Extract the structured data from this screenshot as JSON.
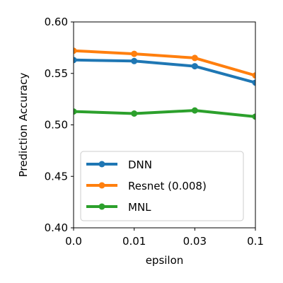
{
  "chart_data": {
    "type": "line",
    "title": "",
    "xlabel": "epsilon",
    "ylabel": "Prediction Accuracy",
    "categories": [
      "0.0",
      "0.01",
      "0.03",
      "0.1"
    ],
    "ylim": [
      0.4,
      0.6
    ],
    "yticks": [
      "0.40",
      "0.45",
      "0.50",
      "0.55",
      "0.60"
    ],
    "grid": false,
    "legend_position": "lower-left",
    "series": [
      {
        "name": "DNN",
        "color": "#1f77b4",
        "values": [
          0.563,
          0.562,
          0.557,
          0.541
        ]
      },
      {
        "name": "Resnet (0.008)",
        "color": "#ff7f0e",
        "values": [
          0.572,
          0.569,
          0.565,
          0.548
        ]
      },
      {
        "name": "MNL",
        "color": "#2ca02c",
        "values": [
          0.513,
          0.511,
          0.514,
          0.508
        ]
      }
    ]
  }
}
